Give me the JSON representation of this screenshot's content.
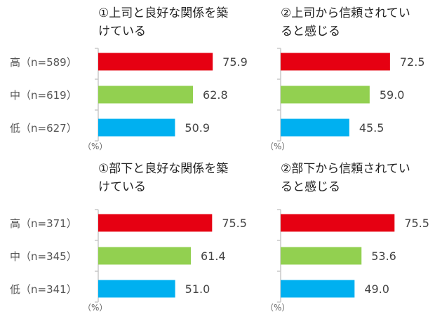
{
  "colors": {
    "high": "#e60012",
    "mid": "#92d050",
    "low": "#00b0f0",
    "axis": "#c8c8c8"
  },
  "chart_data": [
    {
      "type": "bar",
      "orientation": "horizontal",
      "title_lines": [
        "①上司と良好な関係を築",
        "けている"
      ],
      "categories": [
        "高（n=589）",
        "中（n=619）",
        "低（n=627）"
      ],
      "values": [
        75.9,
        62.8,
        50.9
      ],
      "value_labels": [
        "75.9",
        "62.8",
        "50.9"
      ],
      "unit": "（%）",
      "xlim": [
        0,
        100
      ]
    },
    {
      "type": "bar",
      "orientation": "horizontal",
      "title_lines": [
        "②上司から信頼されてい",
        "ると感じる"
      ],
      "categories": [
        "高（n=589）",
        "中（n=619）",
        "低（n=627）"
      ],
      "values": [
        72.5,
        59.0,
        45.5
      ],
      "value_labels": [
        "72.5",
        "59.0",
        "45.5"
      ],
      "unit": "（%）",
      "xlim": [
        0,
        100
      ]
    },
    {
      "type": "bar",
      "orientation": "horizontal",
      "title_lines": [
        "①部下と良好な関係を築",
        "けている"
      ],
      "categories": [
        "高（n=371）",
        "中（n=345）",
        "低（n=341）"
      ],
      "values": [
        75.5,
        61.4,
        51.0
      ],
      "value_labels": [
        "75.5",
        "61.4",
        "51.0"
      ],
      "unit": "（%）",
      "xlim": [
        0,
        100
      ]
    },
    {
      "type": "bar",
      "orientation": "horizontal",
      "title_lines": [
        "②部下から信頼されてい",
        "ると感じる"
      ],
      "categories": [
        "高（n=371）",
        "中（n=345）",
        "低（n=341）"
      ],
      "values": [
        75.5,
        53.6,
        49.0
      ],
      "value_labels": [
        "75.5",
        "53.6",
        "49.0"
      ],
      "unit": "（%）",
      "xlim": [
        0,
        100
      ]
    }
  ]
}
